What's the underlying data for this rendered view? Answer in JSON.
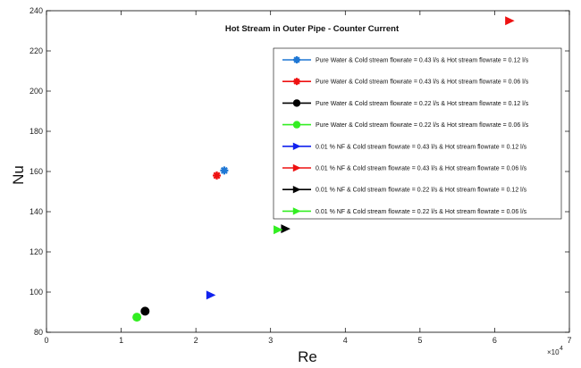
{
  "chart_data": {
    "type": "scatter",
    "title": "Hot Stream in Outer  Pipe - Counter Current",
    "xlabel": "Re",
    "ylabel": "Nu",
    "xlim": [
      0,
      70000
    ],
    "ylim": [
      80,
      240
    ],
    "x_ticks": [
      0,
      10000,
      20000,
      30000,
      40000,
      50000,
      60000,
      70000
    ],
    "x_tick_labels": [
      "0",
      "1",
      "2",
      "3",
      "4",
      "5",
      "6",
      "7"
    ],
    "x_exponent_label": "×10",
    "x_exponent_power": "4",
    "y_ticks": [
      80,
      100,
      120,
      140,
      160,
      180,
      200,
      220,
      240
    ],
    "y_tick_labels": [
      "80",
      "100",
      "120",
      "140",
      "160",
      "180",
      "200",
      "220",
      "240"
    ],
    "grid": false,
    "legend_position": "upper-right",
    "series": [
      {
        "name": "Pure Water & Cold stream flowrate = 0.43 l/s & Hot stream flowrate = 0.12 l/s",
        "color": "#1f77d4",
        "marker": "star",
        "points": [
          [
            23800,
            160.5
          ]
        ]
      },
      {
        "name": "Pure Water & Cold stream flowrate = 0.43 l/s & Hot stream flowrate = 0.06 l/s",
        "color": "#ee1111",
        "marker": "star",
        "points": [
          [
            22800,
            158
          ]
        ]
      },
      {
        "name": "Pure Water & Cold stream flowrate = 0.22 l/s & Hot stream flowrate = 0.12 l/s",
        "color": "#000000",
        "marker": "circle",
        "points": [
          [
            13200,
            90.5
          ]
        ]
      },
      {
        "name": "Pure Water & Cold stream flowrate = 0.22 l/s & Hot stream flowrate = 0.06 l/s",
        "color": "#33ee22",
        "marker": "circle",
        "points": [
          [
            12100,
            87.5
          ]
        ]
      },
      {
        "name": "0.01 % NF & Cold stream flowrate = 0.43 l/s & Hot stream flowrate = 0.12 l/s",
        "color": "#1122ee",
        "marker": "triangle-right",
        "points": [
          [
            22000,
            98.5
          ]
        ]
      },
      {
        "name": "0.01 % NF & Cold stream flowrate = 0.43 l/s & Hot stream flowrate = 0.06 l/s",
        "color": "#ee1111",
        "marker": "triangle-right",
        "points": [
          [
            62000,
            235
          ]
        ]
      },
      {
        "name": "0.01 % NF & Cold stream flowrate = 0.22 l/s & Hot stream flowrate = 0.12 l/s",
        "color": "#000000",
        "marker": "triangle-right",
        "points": [
          [
            32000,
            131.5
          ]
        ]
      },
      {
        "name": "0.01 % NF  & Cold stream flowrate = 0.22 l/s & Hot stream flowrate = 0.06 l/s",
        "color": "#33ee22",
        "marker": "triangle-right",
        "points": [
          [
            31000,
            131
          ]
        ]
      }
    ]
  }
}
